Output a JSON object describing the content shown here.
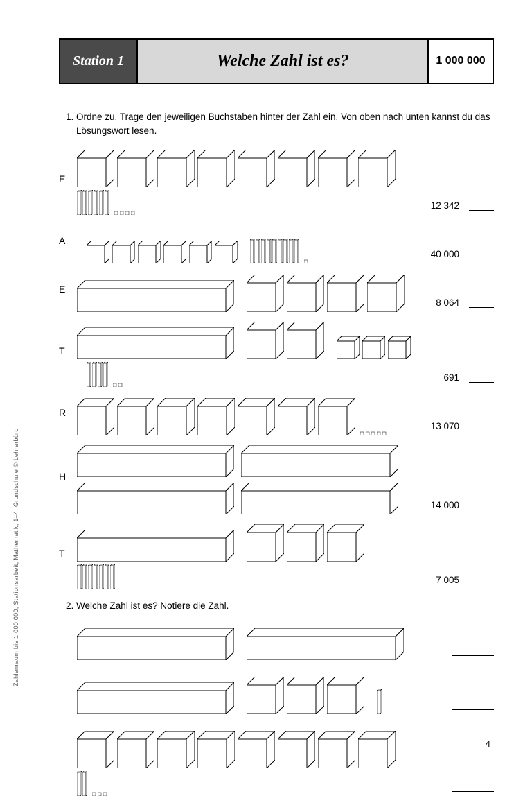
{
  "header": {
    "station": "Station 1",
    "title": "Welche Zahl ist es?",
    "range": "1 000 000"
  },
  "task1": {
    "number": "1.",
    "text": "Ordne zu. Trage den jeweiligen Buchstaben hinter der Zahl ein. Von oben nach unten kannst du das Lösungswort lesen.",
    "rows": [
      {
        "letter": "E",
        "value": "12 342",
        "blocks": {
          "long": 0,
          "large_cubes": 8,
          "flats": 0,
          "rods": 6,
          "units": 4
        }
      },
      {
        "letter": "A",
        "value": "40 000",
        "blocks": {
          "long": 0,
          "large_cubes": 0,
          "flats": 6,
          "rods": 9,
          "units": 1
        }
      },
      {
        "letter": "E",
        "value": "8 064",
        "blocks": {
          "long": 1,
          "large_cubes": 4,
          "flats": 0,
          "rods": 0,
          "units": 0
        }
      },
      {
        "letter": "T",
        "value": "691",
        "blocks": {
          "long": 1,
          "large_cubes": 2,
          "flats": 3,
          "rods": 4,
          "units": 2
        }
      },
      {
        "letter": "R",
        "value": "13 070",
        "blocks": {
          "long": 0,
          "large_cubes": 7,
          "flats": 0,
          "rods": 0,
          "units": 5
        }
      },
      {
        "letter": "H",
        "value": "14 000",
        "blocks": {
          "long": 4,
          "large_cubes": 0,
          "flats": 0,
          "rods": 0,
          "units": 0
        }
      },
      {
        "letter": "T",
        "value": "7 005",
        "blocks": {
          "long": 1,
          "large_cubes": 3,
          "flats": 0,
          "rods": 7,
          "units": 0
        }
      }
    ]
  },
  "task2": {
    "number": "2.",
    "text": "Welche Zahl ist es? Notiere die Zahl.",
    "rows": [
      {
        "blocks": {
          "long": 2,
          "large_cubes": 0,
          "flats": 0,
          "rods": 0,
          "units": 0
        }
      },
      {
        "blocks": {
          "long": 1,
          "large_cubes": 3,
          "flats": 0,
          "rods": 1,
          "units": 0
        }
      },
      {
        "blocks": {
          "long": 0,
          "large_cubes": 8,
          "flats": 0,
          "rods": 2,
          "units": 3
        }
      }
    ]
  },
  "footer": {
    "credit": "Zahlenraum bis 1 000 000, Stationsarbeit, Mathematik, 1–4, Grundschule © Lehrerbüro",
    "page": "4"
  },
  "style": {
    "colors": {
      "station_bg": "#4a4a4a",
      "title_bg": "#d8d8d8",
      "line": "#000000",
      "block_fill": "#ffffff"
    },
    "fonts": {
      "header_family": "Times New Roman, serif",
      "body_family": "Arial, sans-serif",
      "header_size_pt": 18,
      "body_size_pt": 10
    },
    "block_dims": {
      "long_w": 215,
      "long_h": 34,
      "long_depth": 12,
      "cube_w": 42,
      "cube_depth": 12,
      "flat_w": 26,
      "flat_depth": 7,
      "rod_w": 5,
      "rod_h": 34,
      "unit_w": 5
    }
  }
}
